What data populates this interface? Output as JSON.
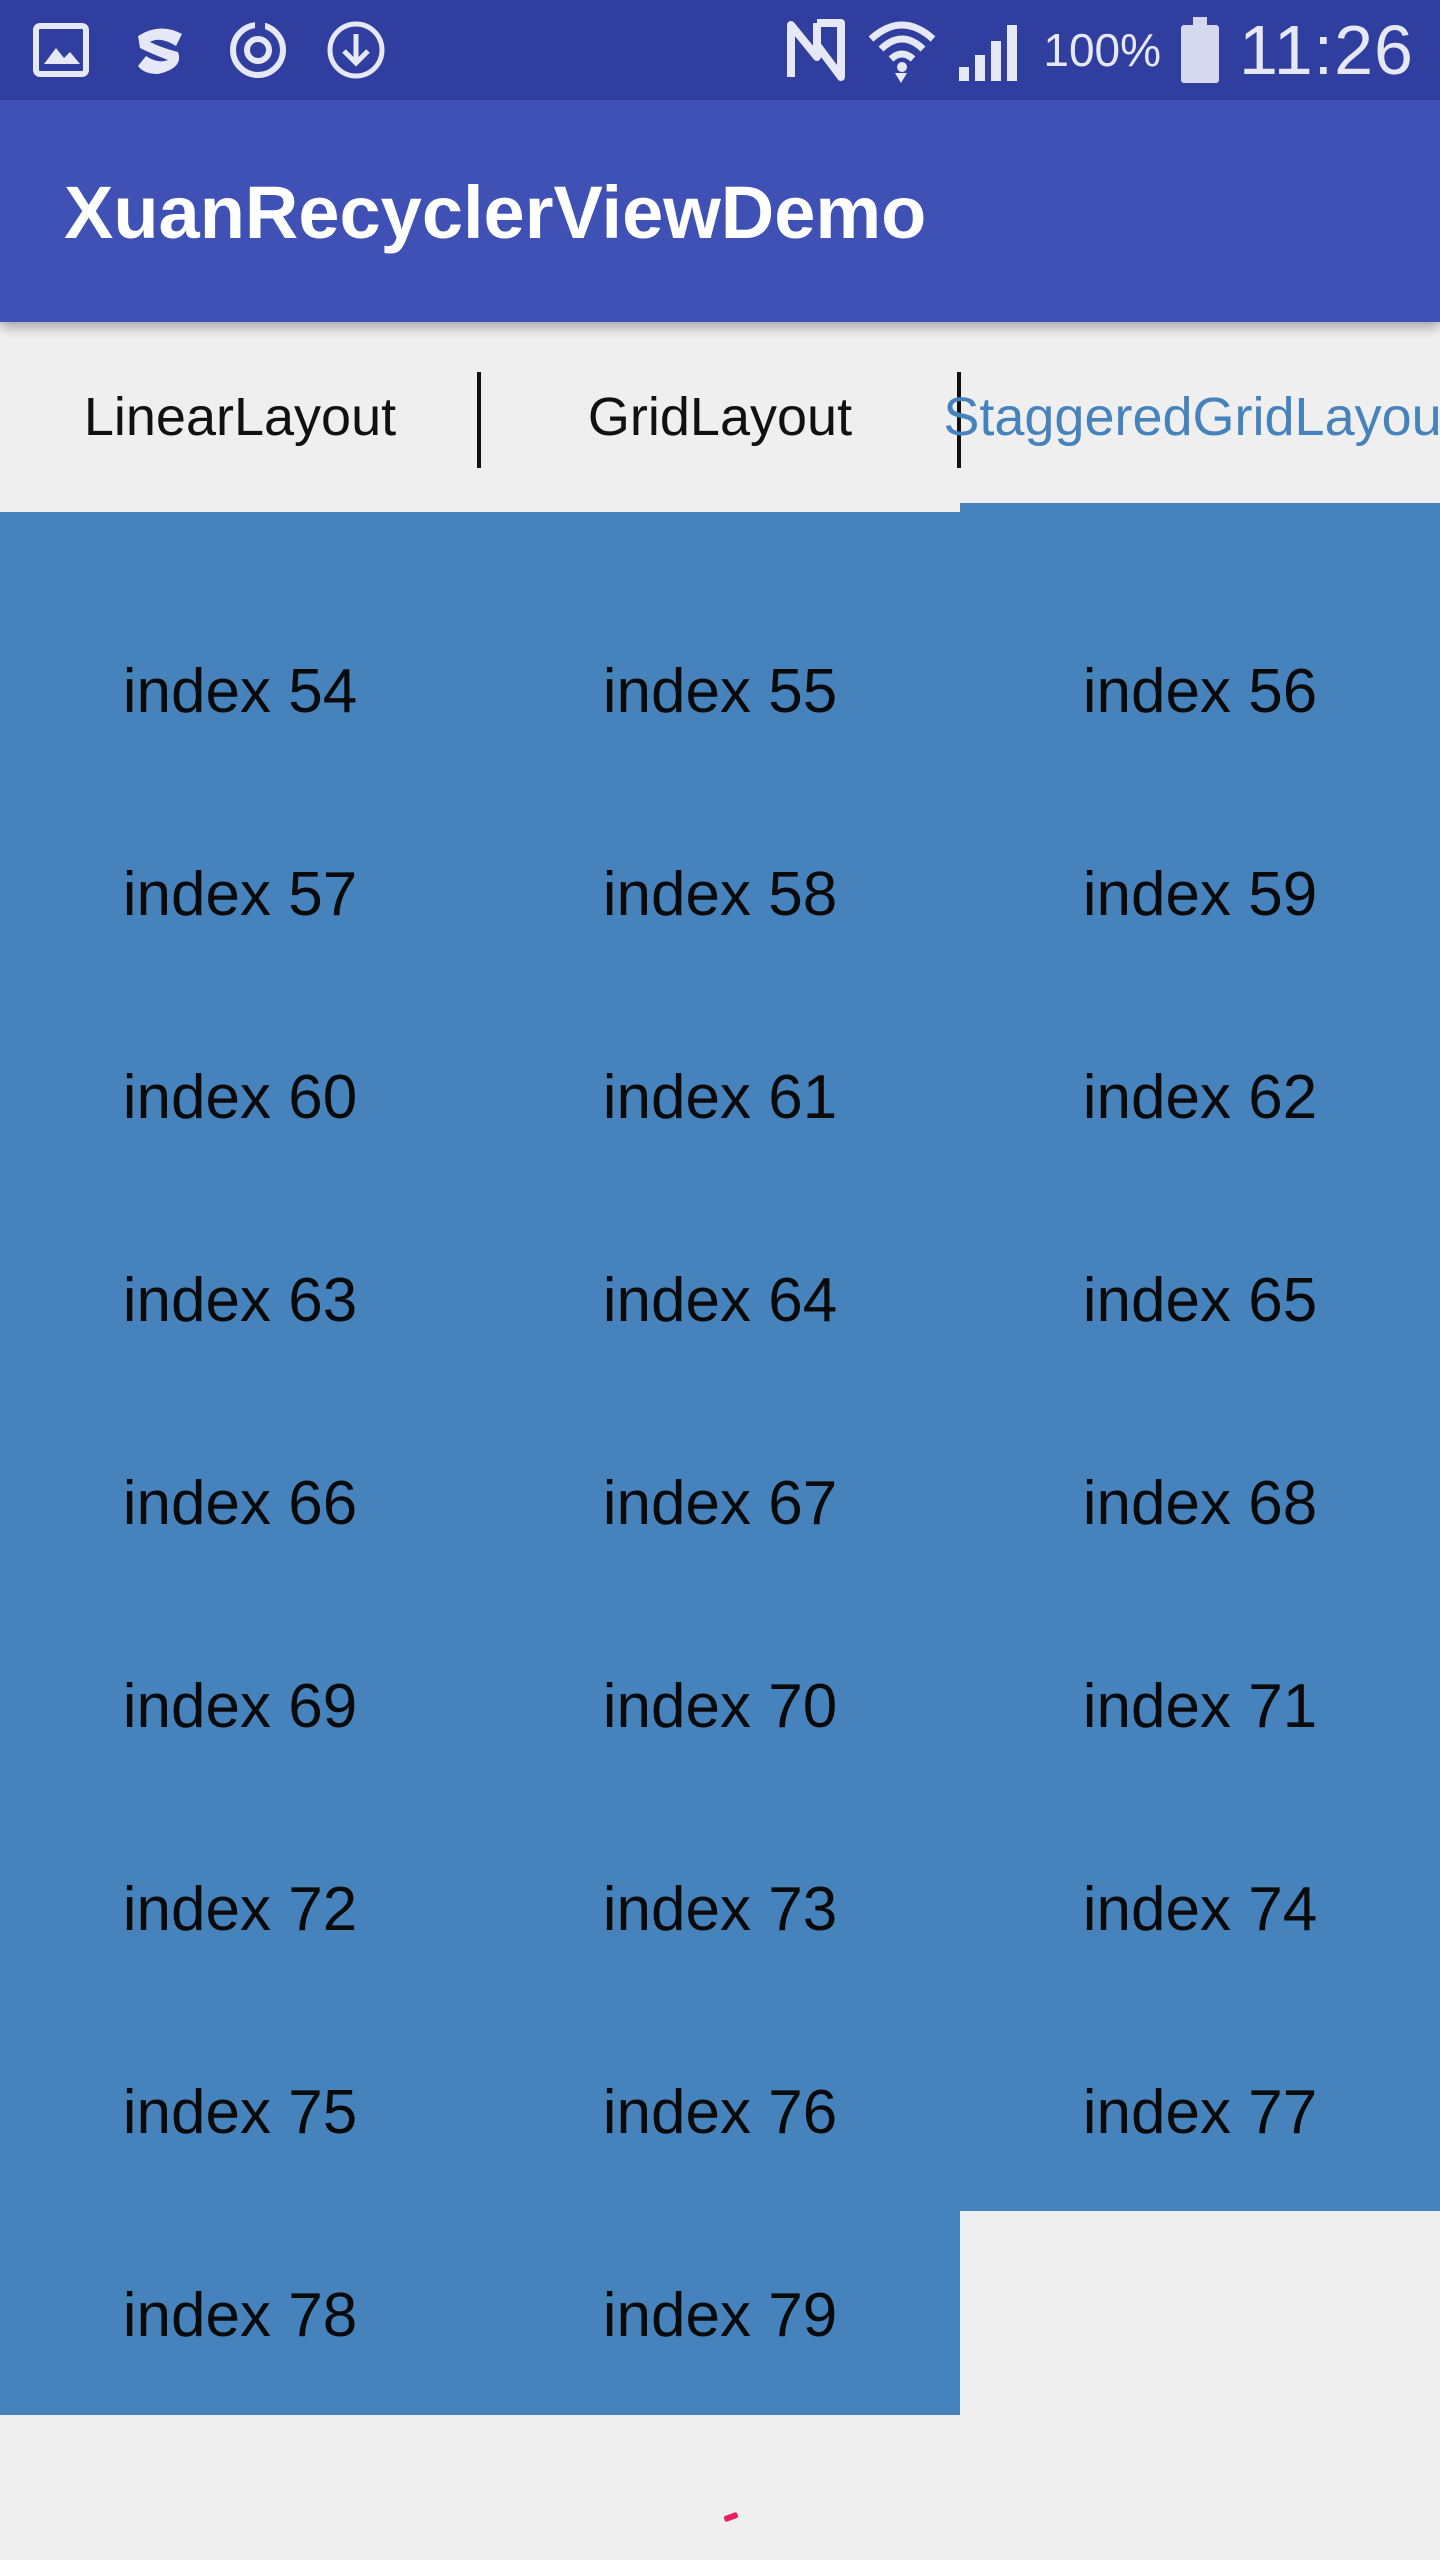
{
  "status_bar": {
    "left_icons": [
      "gallery-icon",
      "app-s-icon",
      "sync-icon",
      "download-icon"
    ],
    "right_icons": [
      "nfc-icon",
      "wifi-icon",
      "signal-icon",
      "battery-icon"
    ],
    "battery_percent": "100%",
    "time": "11:26"
  },
  "app_bar": {
    "title": "XuanRecyclerViewDemo"
  },
  "tabs": [
    {
      "label": "LinearLayout"
    },
    {
      "label": "GridLayout"
    },
    {
      "label": "StaggeredGridLayout",
      "active": true
    }
  ],
  "grid": {
    "items": [
      "index 54",
      "index 55",
      "index 56",
      "index 57",
      "index 58",
      "index 59",
      "index 60",
      "index 61",
      "index 62",
      "index 63",
      "index 64",
      "index 65",
      "index 66",
      "index 67",
      "index 68",
      "index 69",
      "index 70",
      "index 71",
      "index 72",
      "index 73",
      "index 74",
      "index 75",
      "index 76",
      "index 77",
      "index 78",
      "index 79"
    ]
  },
  "colors": {
    "status_bar": "#303f9f",
    "app_bar": "#3f51b5",
    "item_background": "#4682bc",
    "active_tab_text": "#4682bc",
    "page_background": "#efefef",
    "indicator": "#e91e63"
  }
}
